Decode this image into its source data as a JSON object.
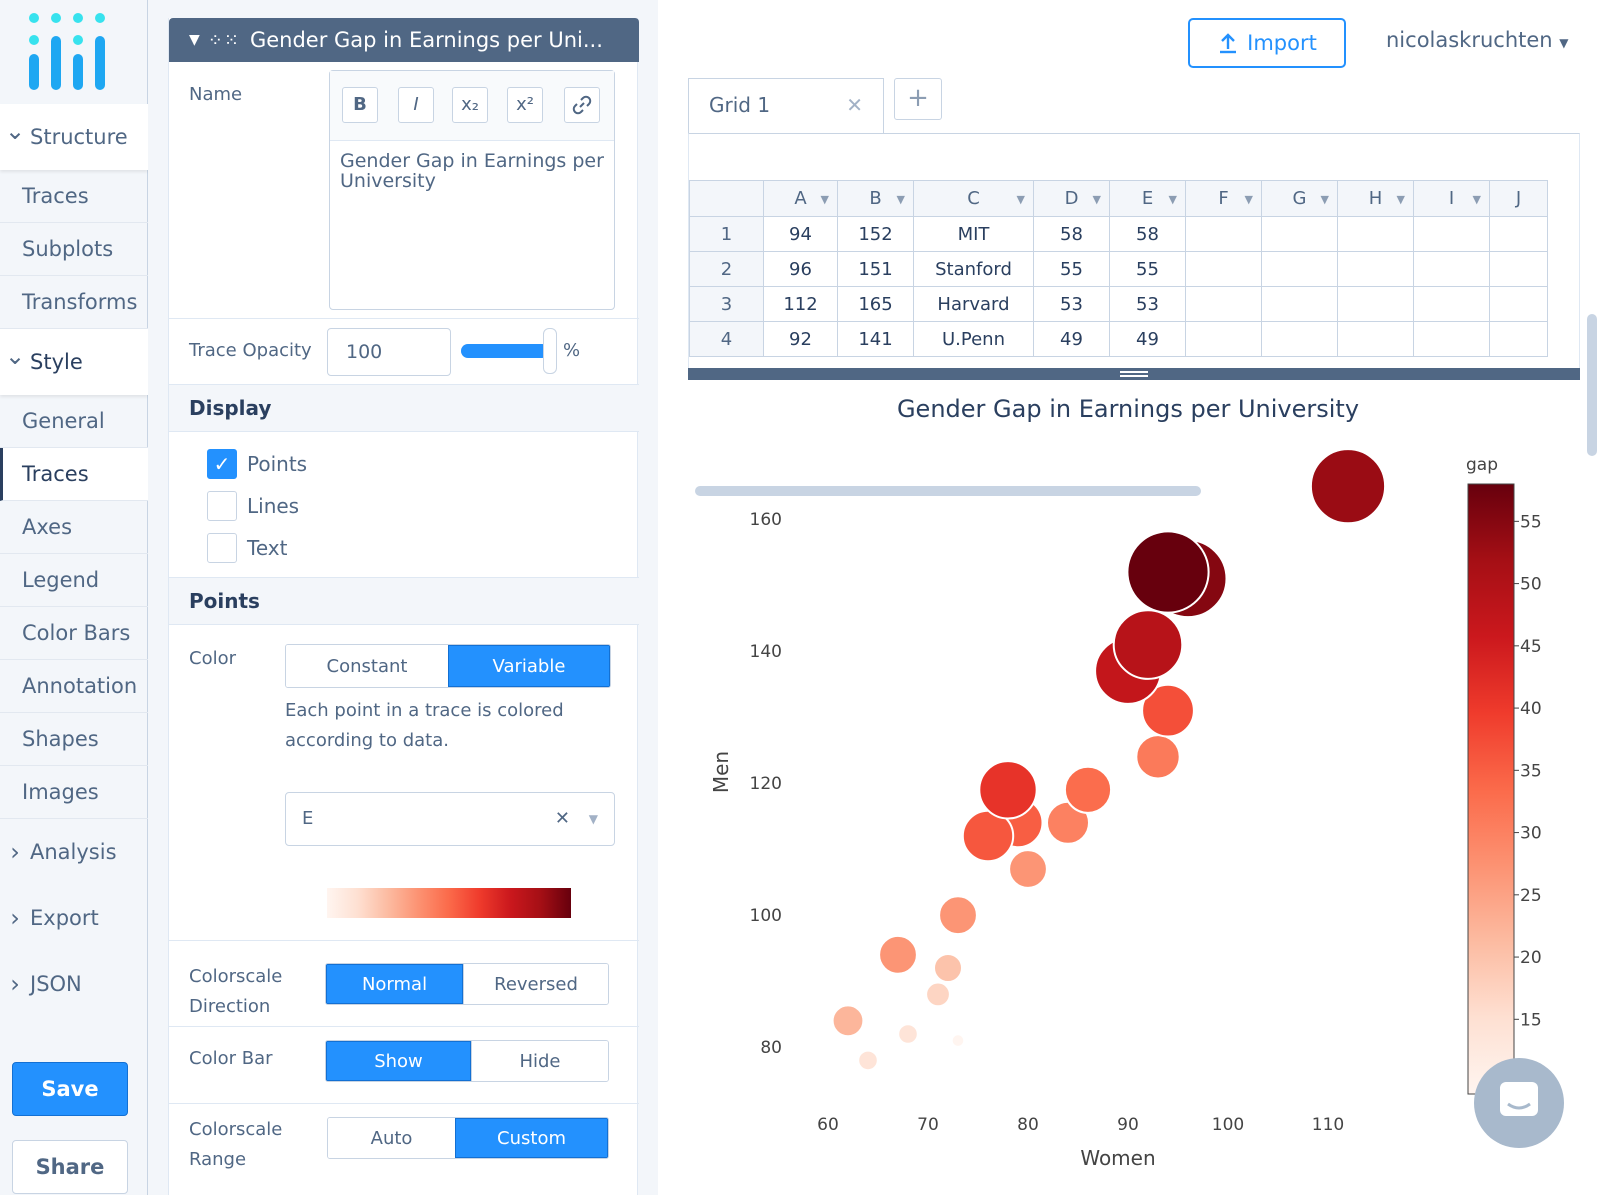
{
  "sidebar": {
    "groups": [
      {
        "label": "Structure",
        "open": true,
        "items": [
          {
            "label": "Traces"
          },
          {
            "label": "Subplots"
          },
          {
            "label": "Transforms"
          }
        ]
      },
      {
        "label": "Style",
        "open": true,
        "items": [
          {
            "label": "General"
          },
          {
            "label": "Traces",
            "active": true
          },
          {
            "label": "Axes"
          },
          {
            "label": "Legend"
          },
          {
            "label": "Color Bars"
          },
          {
            "label": "Annotation"
          },
          {
            "label": "Shapes"
          },
          {
            "label": "Images"
          }
        ]
      },
      {
        "label": "Analysis",
        "open": false
      },
      {
        "label": "Export",
        "open": false
      },
      {
        "label": "JSON",
        "open": false
      }
    ],
    "save_label": "Save",
    "share_label": "Share"
  },
  "panel": {
    "header_title": "Gender Gap in Earnings per Uni...",
    "name_label": "Name",
    "name_value": "Gender Gap in Earnings per University",
    "rte_tools": [
      "B",
      "I",
      "x₂",
      "x²",
      "link"
    ],
    "opacity_label": "Trace Opacity",
    "opacity_value": "100",
    "opacity_unit": "%",
    "opacity_fraction": 1.0,
    "display_section": "Display",
    "display_options": [
      {
        "label": "Points",
        "checked": true
      },
      {
        "label": "Lines",
        "checked": false
      },
      {
        "label": "Text",
        "checked": false
      }
    ],
    "points_section": "Points",
    "color_label": "Color",
    "color_modes": [
      "Constant",
      "Variable"
    ],
    "color_mode_selected": "Variable",
    "color_desc": "Each point in a trace is colored according to data.",
    "color_column": "E",
    "direction_label_1": "Colorscale",
    "direction_label_2": "Direction",
    "direction_options": [
      "Normal",
      "Reversed"
    ],
    "direction_selected": "Normal",
    "colorbar_label": "Color Bar",
    "colorbar_options": [
      "Show",
      "Hide"
    ],
    "colorbar_selected": "Show",
    "range_label_1": "Colorscale",
    "range_label_2": "Range",
    "range_options": [
      "Auto",
      "Custom"
    ],
    "range_selected": "Custom",
    "colorscale": [
      "#fff5f0",
      "#fee0d2",
      "#fcbba1",
      "#fc9272",
      "#fb6a4a",
      "#ef3b2c",
      "#cb181d",
      "#a50f15",
      "#67000d"
    ]
  },
  "header": {
    "import_label": "Import",
    "user_label": "nicolaskruchten"
  },
  "grid": {
    "tab_label": "Grid 1",
    "columns": [
      "A",
      "B",
      "C",
      "D",
      "E",
      "F",
      "G",
      "H",
      "I",
      "J"
    ],
    "rows": [
      {
        "n": "1",
        "cells": [
          "94",
          "152",
          "MIT",
          "58",
          "58",
          "",
          "",
          "",
          "",
          ""
        ]
      },
      {
        "n": "2",
        "cells": [
          "96",
          "151",
          "Stanford",
          "55",
          "55",
          "",
          "",
          "",
          "",
          ""
        ]
      },
      {
        "n": "3",
        "cells": [
          "112",
          "165",
          "Harvard",
          "53",
          "53",
          "",
          "",
          "",
          "",
          ""
        ]
      },
      {
        "n": "4",
        "cells": [
          "92",
          "141",
          "U.Penn",
          "49",
          "49",
          "",
          "",
          "",
          "",
          ""
        ]
      }
    ]
  },
  "chart_data": {
    "type": "scatter",
    "title": "Gender Gap in Earnings per University",
    "xlabel": "Women",
    "ylabel": "Men",
    "xlim": [
      57,
      121
    ],
    "ylim": [
      72,
      172
    ],
    "xticks": [
      60,
      70,
      80,
      90,
      100,
      110
    ],
    "yticks": [
      80,
      100,
      120,
      140,
      160
    ],
    "colorbar_title": "gap",
    "colorbar_ticks": [
      15,
      20,
      25,
      30,
      35,
      40,
      45,
      50,
      55
    ],
    "crange": [
      9,
      58
    ],
    "grid": false,
    "points": [
      {
        "x": 112,
        "y": 165,
        "gap": 53
      },
      {
        "x": 94,
        "y": 152,
        "gap": 58
      },
      {
        "x": 96,
        "y": 151,
        "gap": 55
      },
      {
        "x": 92,
        "y": 141,
        "gap": 49
      },
      {
        "x": 90,
        "y": 137,
        "gap": 47
      },
      {
        "x": 94,
        "y": 131,
        "gap": 37
      },
      {
        "x": 93,
        "y": 124,
        "gap": 31
      },
      {
        "x": 86,
        "y": 119,
        "gap": 33
      },
      {
        "x": 78,
        "y": 119,
        "gap": 41
      },
      {
        "x": 84,
        "y": 114,
        "gap": 30
      },
      {
        "x": 76,
        "y": 112,
        "gap": 36
      },
      {
        "x": 79,
        "y": 114,
        "gap": 35
      },
      {
        "x": 80,
        "y": 107,
        "gap": 27
      },
      {
        "x": 73,
        "y": 100,
        "gap": 27
      },
      {
        "x": 67,
        "y": 94,
        "gap": 27
      },
      {
        "x": 72,
        "y": 92,
        "gap": 20
      },
      {
        "x": 71,
        "y": 88,
        "gap": 17
      },
      {
        "x": 62,
        "y": 84,
        "gap": 22
      },
      {
        "x": 68,
        "y": 82,
        "gap": 14
      },
      {
        "x": 73,
        "y": 81,
        "gap": 9
      },
      {
        "x": 64,
        "y": 78,
        "gap": 14
      }
    ]
  }
}
